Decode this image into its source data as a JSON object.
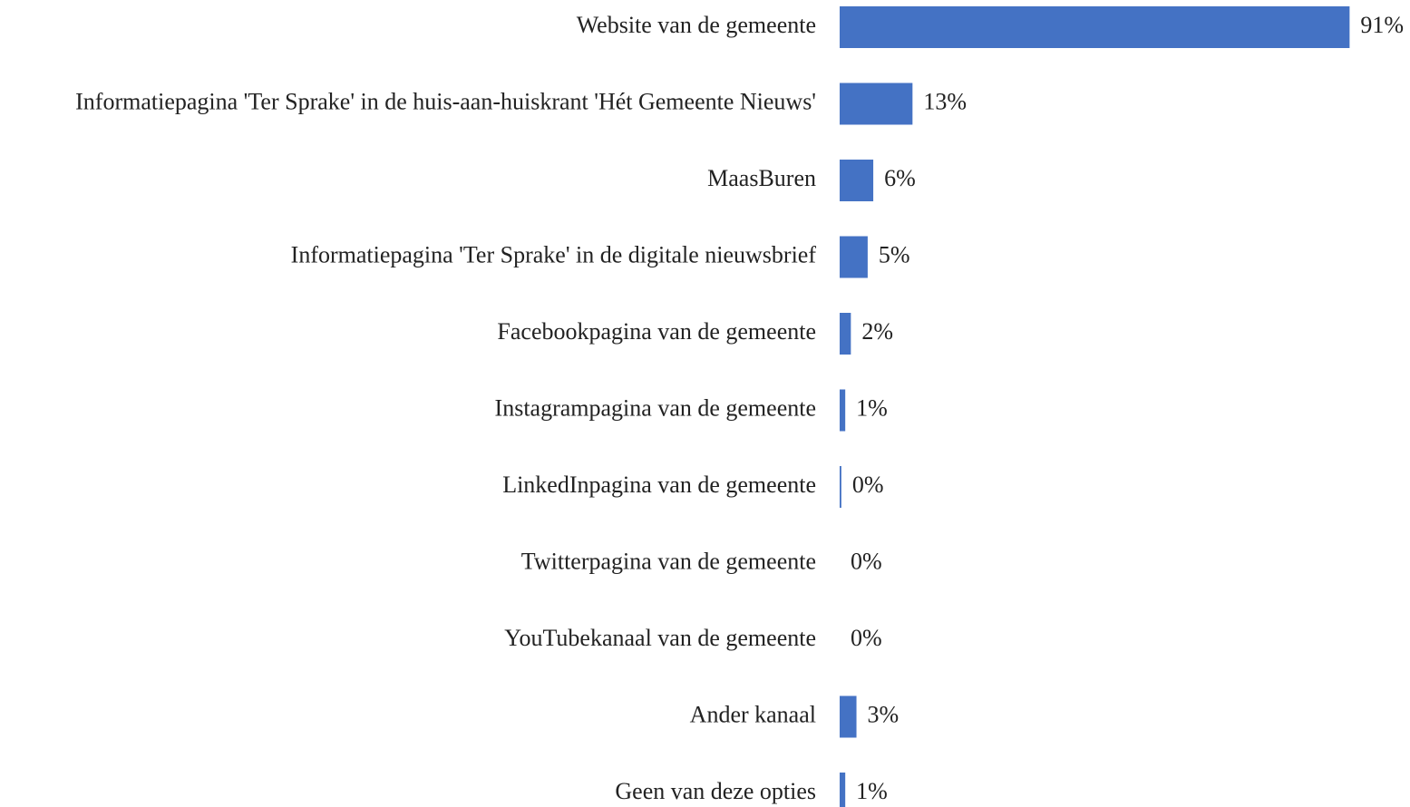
{
  "chart_data": {
    "type": "bar",
    "orientation": "horizontal",
    "categories": [
      "Website van de gemeente",
      "Informatiepagina 'Ter Sprake' in de huis-aan-huiskrant 'Hét Gemeente Nieuws'",
      "MaasBuren",
      "Informatiepagina 'Ter Sprake' in de digitale nieuwsbrief",
      "Facebookpagina van de gemeente",
      "Instagrampagina van de gemeente",
      "LinkedInpagina van de gemeente",
      "Twitterpagina van de gemeente",
      "YouTubekanaal van de gemeente",
      "Ander kanaal",
      "Geen van deze opties"
    ],
    "values": [
      91,
      13,
      6,
      5,
      2,
      1,
      0.3,
      0,
      0,
      3,
      1
    ],
    "value_labels": [
      "91%",
      "13%",
      "6%",
      "5%",
      "2%",
      "1%",
      "0%",
      "0%",
      "0%",
      "3%",
      "1%"
    ],
    "color": "#4472c4",
    "xlim": [
      0,
      100
    ]
  }
}
